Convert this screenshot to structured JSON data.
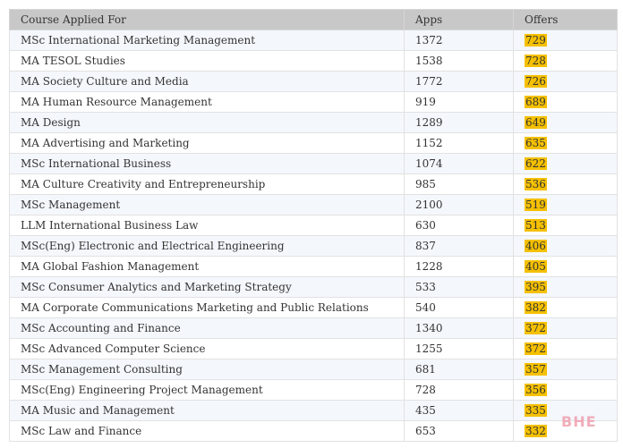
{
  "table": {
    "headers": [
      "Course Applied For",
      "Apps",
      "Offers"
    ],
    "highlight_color": "#f5c000",
    "rows": [
      {
        "course": "MSc International Marketing Management",
        "apps": "1372",
        "offers": "729"
      },
      {
        "course": "MA TESOL Studies",
        "apps": "1538",
        "offers": "728"
      },
      {
        "course": "MA Society Culture and Media",
        "apps": "1772",
        "offers": "726"
      },
      {
        "course": "MA Human Resource Management",
        "apps": "919",
        "offers": "689"
      },
      {
        "course": "MA Design",
        "apps": "1289",
        "offers": "649"
      },
      {
        "course": "MA Advertising and Marketing",
        "apps": "1152",
        "offers": "635"
      },
      {
        "course": "MSc International Business",
        "apps": "1074",
        "offers": "622"
      },
      {
        "course": "MA Culture Creativity and Entrepreneurship",
        "apps": "985",
        "offers": "536"
      },
      {
        "course": "MSc Management",
        "apps": "2100",
        "offers": "519"
      },
      {
        "course": "LLM International Business Law",
        "apps": "630",
        "offers": "513"
      },
      {
        "course": "MSc(Eng) Electronic and Electrical Engineering",
        "apps": "837",
        "offers": "406"
      },
      {
        "course": "MA Global Fashion Management",
        "apps": "1228",
        "offers": "405"
      },
      {
        "course": "MSc Consumer Analytics and Marketing Strategy",
        "apps": "533",
        "offers": "395"
      },
      {
        "course": "MA Corporate Communications Marketing and Public Relations",
        "apps": "540",
        "offers": "382"
      },
      {
        "course": "MSc Accounting and Finance",
        "apps": "1340",
        "offers": "372"
      },
      {
        "course": "MSc Advanced Computer Science",
        "apps": "1255",
        "offers": "372"
      },
      {
        "course": "MSc Management Consulting",
        "apps": "681",
        "offers": "357"
      },
      {
        "course": "MSc(Eng) Engineering Project Management",
        "apps": "728",
        "offers": "356"
      },
      {
        "course": "MA Music and Management",
        "apps": "435",
        "offers": "335"
      },
      {
        "course": "MSc Law and Finance",
        "apps": "653",
        "offers": "332"
      }
    ]
  },
  "watermark": {
    "text": "BHE",
    "color": "#f0a0b0"
  }
}
